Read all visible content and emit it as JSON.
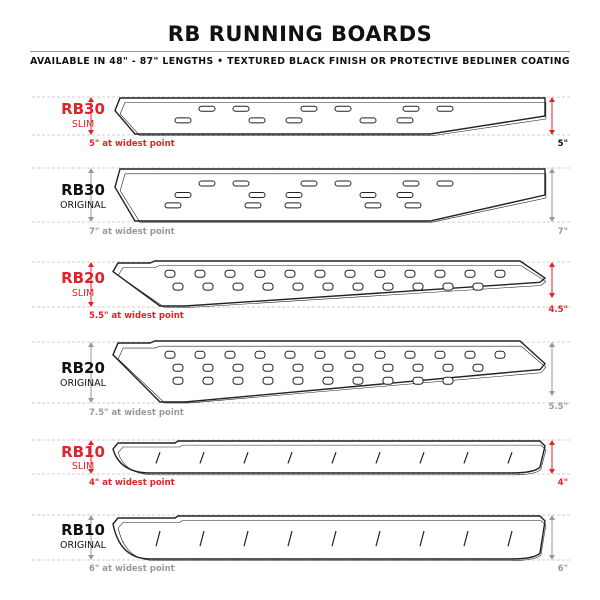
{
  "header": {
    "title": "RB RUNNING BOARDS",
    "subtitle": "AVAILABLE IN 48\" - 87\" LENGTHS   •  TEXTURED BLACK FINISH OR PROTECTIVE BEDLINER COATING"
  },
  "colors": {
    "slim": "#e1222b",
    "original": "#111111",
    "dimension_gray": "#999999"
  },
  "boards": [
    {
      "model": "RB30",
      "variant": "SLIM",
      "caption": "5\" at widest point",
      "end": "5\""
    },
    {
      "model": "RB30",
      "variant": "ORIGINAL",
      "caption": "7\" at widest point",
      "end": "7\""
    },
    {
      "model": "RB20",
      "variant": "SLIM",
      "caption": "5.5\" at widest point",
      "end": "4.5\""
    },
    {
      "model": "RB20",
      "variant": "ORIGINAL",
      "caption": "7.5\" at widest point",
      "end": "5.5\""
    },
    {
      "model": "RB10",
      "variant": "SLIM",
      "caption": "4\" at widest point",
      "end": "4\""
    },
    {
      "model": "RB10",
      "variant": "ORIGINAL",
      "caption": "6\" at widest point",
      "end": "6\""
    }
  ]
}
